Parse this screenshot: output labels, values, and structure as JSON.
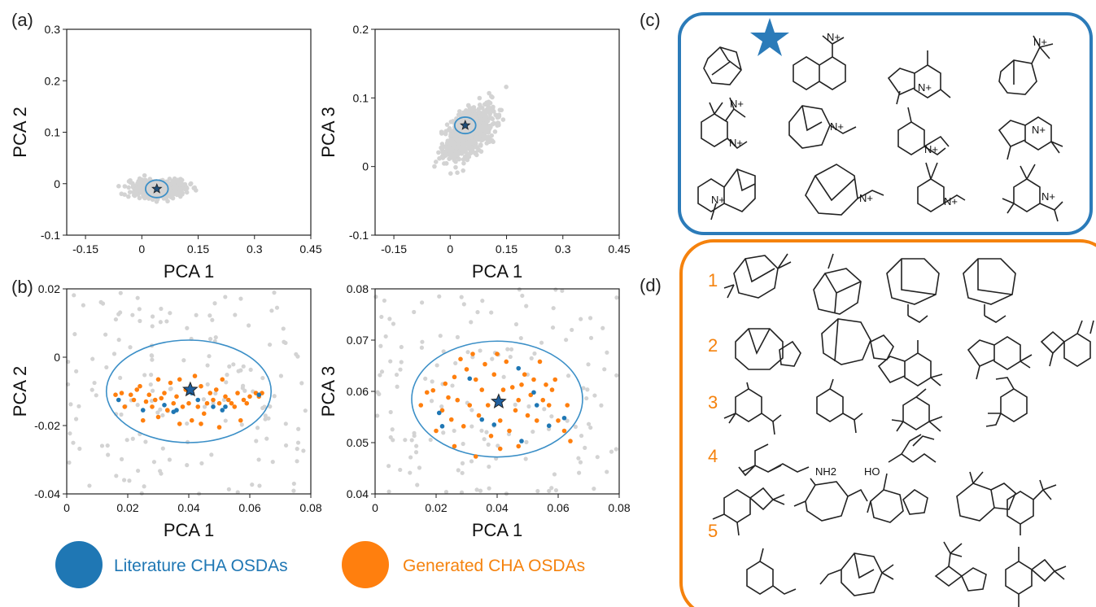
{
  "panel_labels": {
    "a": "(a)",
    "b": "(b)",
    "c": "(c)",
    "d": "(d)"
  },
  "colors": {
    "background_points": "#d3d3d3",
    "literature": "#1f77b4",
    "generated": "#ff7f0e",
    "ellipse": "#3b8fc7",
    "box_c": "#2b7bb9",
    "box_d": "#f5820d"
  },
  "legend": {
    "literature": "Literature CHA OSDAs",
    "generated": "Generated CHA OSDAs"
  },
  "group_numbers": [
    "1",
    "2",
    "3",
    "4",
    "5"
  ],
  "structure_texts": {
    "nh2": "NH2",
    "ho": "HO",
    "n_plus": "N+"
  },
  "chart_data": [
    {
      "id": "a-left",
      "type": "scatter",
      "xlabel": "PCA 1",
      "ylabel": "PCA 2",
      "xlim": [
        -0.2,
        0.45
      ],
      "ylim": [
        -0.1,
        0.3
      ],
      "xticks": [
        -0.15,
        0,
        0.15,
        0.3,
        0.45
      ],
      "xtick_labels": [
        "-0.15",
        "0",
        "0.15",
        "0.3",
        "0.45"
      ],
      "yticks": [
        -0.1,
        0,
        0.1,
        0.2,
        0.3
      ],
      "ytick_labels": [
        "-0.1",
        "0",
        "0.1",
        "0.2",
        "0.3"
      ],
      "cloud": {
        "approx_points": 450,
        "center": [
          0.05,
          -0.01
        ],
        "spread": [
          0.1,
          0.02
        ]
      },
      "highlight_star": [
        0.04,
        -0.01
      ],
      "highlight_ellipse_radius": [
        0.03,
        0.017
      ]
    },
    {
      "id": "a-right",
      "type": "scatter",
      "xlabel": "PCA 1",
      "ylabel": "PCA 3",
      "xlim": [
        -0.2,
        0.45
      ],
      "ylim": [
        -0.1,
        0.2
      ],
      "xticks": [
        -0.15,
        0,
        0.15,
        0.3,
        0.45
      ],
      "xtick_labels": [
        "-0.15",
        "0",
        "0.15",
        "0.3",
        "0.45"
      ],
      "yticks": [
        -0.1,
        0,
        0.1,
        0.2
      ],
      "ytick_labels": [
        "-0.1",
        "0",
        "0.1",
        "0.2"
      ],
      "cloud": {
        "approx_points": 650,
        "center": [
          0.05,
          0.05
        ],
        "spread": [
          0.09,
          0.04
        ]
      },
      "highlight_star": [
        0.04,
        0.06
      ],
      "highlight_ellipse_radius": [
        0.028,
        0.012
      ]
    },
    {
      "id": "b-left",
      "type": "scatter",
      "xlabel": "PCA 1",
      "ylabel": "PCA 2",
      "xlim": [
        0,
        0.08
      ],
      "ylim": [
        -0.04,
        0.02
      ],
      "xticks": [
        0,
        0.02,
        0.04,
        0.06,
        0.08
      ],
      "xtick_labels": [
        "0",
        "0.02",
        "0.04",
        "0.06",
        "0.08"
      ],
      "yticks": [
        -0.04,
        -0.02,
        0,
        0.02
      ],
      "ytick_labels": [
        "-0.04",
        "-0.02",
        "0",
        "0.02"
      ],
      "ellipse": {
        "center": [
          0.04,
          -0.01
        ],
        "radius": [
          0.027,
          0.015
        ]
      },
      "star": [
        0.0405,
        -0.0095
      ],
      "literature_points": [
        [
          0.017,
          -0.0125
        ],
        [
          0.025,
          -0.0155
        ],
        [
          0.032,
          -0.014
        ],
        [
          0.035,
          -0.016
        ],
        [
          0.041,
          -0.0105
        ],
        [
          0.043,
          -0.0125
        ],
        [
          0.048,
          -0.0145
        ],
        [
          0.051,
          -0.0155
        ],
        [
          0.052,
          -0.0145
        ],
        [
          0.063,
          -0.011
        ],
        [
          0.036,
          -0.0155
        ]
      ],
      "generated_points": [
        [
          0.016,
          -0.011
        ],
        [
          0.018,
          -0.0105
        ],
        [
          0.019,
          -0.0145
        ],
        [
          0.021,
          -0.011
        ],
        [
          0.022,
          -0.0125
        ],
        [
          0.023,
          -0.0095
        ],
        [
          0.024,
          -0.0085
        ],
        [
          0.026,
          -0.013
        ],
        [
          0.027,
          -0.011
        ],
        [
          0.028,
          -0.0145
        ],
        [
          0.029,
          -0.0125
        ],
        [
          0.03,
          -0.0065
        ],
        [
          0.031,
          -0.012
        ],
        [
          0.032,
          -0.0105
        ],
        [
          0.033,
          -0.0155
        ],
        [
          0.034,
          -0.0075
        ],
        [
          0.035,
          -0.0135
        ],
        [
          0.036,
          -0.0115
        ],
        [
          0.037,
          -0.0065
        ],
        [
          0.038,
          -0.0145
        ],
        [
          0.039,
          -0.0095
        ],
        [
          0.04,
          -0.0135
        ],
        [
          0.041,
          -0.0185
        ],
        [
          0.042,
          -0.0055
        ],
        [
          0.043,
          -0.0145
        ],
        [
          0.044,
          -0.0085
        ],
        [
          0.045,
          -0.0165
        ],
        [
          0.046,
          -0.0135
        ],
        [
          0.047,
          -0.0105
        ],
        [
          0.048,
          -0.0125
        ],
        [
          0.049,
          -0.0095
        ],
        [
          0.05,
          -0.0135
        ],
        [
          0.051,
          -0.0065
        ],
        [
          0.052,
          -0.0115
        ],
        [
          0.053,
          -0.0125
        ],
        [
          0.054,
          -0.0135
        ],
        [
          0.055,
          -0.0145
        ],
        [
          0.056,
          -0.0105
        ],
        [
          0.057,
          -0.0185
        ],
        [
          0.058,
          -0.0125
        ],
        [
          0.059,
          -0.0135
        ],
        [
          0.06,
          -0.0115
        ],
        [
          0.062,
          -0.0105
        ],
        [
          0.063,
          -0.0115
        ],
        [
          0.064,
          -0.0105
        ],
        [
          0.025,
          -0.0185
        ],
        [
          0.03,
          -0.0175
        ],
        [
          0.037,
          -0.0195
        ],
        [
          0.044,
          -0.0195
        ],
        [
          0.05,
          -0.0205
        ]
      ],
      "background_points_count": 160
    },
    {
      "id": "b-right",
      "type": "scatter",
      "xlabel": "PCA 1",
      "ylabel": "PCA 3",
      "xlim": [
        0,
        0.08
      ],
      "ylim": [
        0.04,
        0.08
      ],
      "xticks": [
        0,
        0.02,
        0.04,
        0.06,
        0.08
      ],
      "xtick_labels": [
        "0",
        "0.02",
        "0.04",
        "0.06",
        "0.08"
      ],
      "yticks": [
        0.04,
        0.05,
        0.06,
        0.07,
        0.08
      ],
      "ytick_labels": [
        "0.04",
        "0.05",
        "0.06",
        "0.07",
        "0.08"
      ],
      "ellipse": {
        "center": [
          0.04,
          0.0585
        ],
        "radius": [
          0.028,
          0.0113
        ]
      },
      "star": [
        0.0405,
        0.058
      ],
      "literature_points": [
        [
          0.021,
          0.0558
        ],
        [
          0.022,
          0.0532
        ],
        [
          0.031,
          0.0625
        ],
        [
          0.035,
          0.0545
        ],
        [
          0.039,
          0.0535
        ],
        [
          0.047,
          0.0645
        ],
        [
          0.052,
          0.0598
        ],
        [
          0.053,
          0.0573
        ],
        [
          0.057,
          0.0533
        ],
        [
          0.062,
          0.0548
        ],
        [
          0.048,
          0.0503
        ]
      ],
      "generated_points": [
        [
          0.015,
          0.0573
        ],
        [
          0.017,
          0.0598
        ],
        [
          0.019,
          0.0602
        ],
        [
          0.02,
          0.0523
        ],
        [
          0.022,
          0.0563
        ],
        [
          0.023,
          0.0615
        ],
        [
          0.024,
          0.0588
        ],
        [
          0.025,
          0.0545
        ],
        [
          0.026,
          0.0628
        ],
        [
          0.027,
          0.0583
        ],
        [
          0.028,
          0.0663
        ],
        [
          0.029,
          0.0532
        ],
        [
          0.03,
          0.0643
        ],
        [
          0.031,
          0.0573
        ],
        [
          0.032,
          0.0673
        ],
        [
          0.033,
          0.0623
        ],
        [
          0.034,
          0.0553
        ],
        [
          0.035,
          0.0603
        ],
        [
          0.036,
          0.0653
        ],
        [
          0.037,
          0.0573
        ],
        [
          0.038,
          0.0513
        ],
        [
          0.039,
          0.0633
        ],
        [
          0.04,
          0.0673
        ],
        [
          0.041,
          0.0543
        ],
        [
          0.042,
          0.0603
        ],
        [
          0.043,
          0.0658
        ],
        [
          0.044,
          0.0523
        ],
        [
          0.045,
          0.0608
        ],
        [
          0.046,
          0.0563
        ],
        [
          0.047,
          0.0583
        ],
        [
          0.048,
          0.0613
        ],
        [
          0.049,
          0.0633
        ],
        [
          0.05,
          0.0553
        ],
        [
          0.051,
          0.0593
        ],
        [
          0.052,
          0.0623
        ],
        [
          0.053,
          0.0543
        ],
        [
          0.054,
          0.0658
        ],
        [
          0.055,
          0.0583
        ],
        [
          0.056,
          0.0613
        ],
        [
          0.057,
          0.0573
        ],
        [
          0.058,
          0.0603
        ],
        [
          0.059,
          0.0623
        ],
        [
          0.06,
          0.0543
        ],
        [
          0.062,
          0.0523
        ],
        [
          0.063,
          0.0573
        ],
        [
          0.064,
          0.0503
        ],
        [
          0.026,
          0.0493
        ],
        [
          0.033,
          0.0473
        ],
        [
          0.041,
          0.0488
        ],
        [
          0.047,
          0.0493
        ]
      ],
      "background_points_count": 150
    }
  ]
}
